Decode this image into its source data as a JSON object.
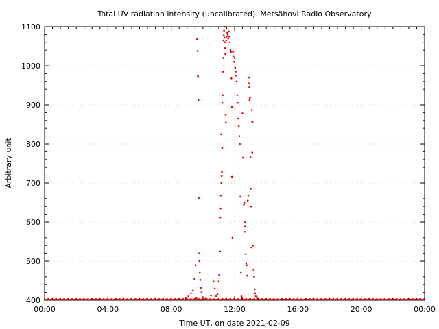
{
  "chart_data": {
    "type": "scatter",
    "title": "Total UV radiation intensity (uncalibrated). Metsähovi Radio Observatory",
    "xlabel": "Time UT, on date 2021-02-09",
    "ylabel": "Arbitrary unit",
    "xlim": [
      "00:00",
      "24:00"
    ],
    "ylim": [
      400,
      1100
    ],
    "xticks": [
      "00:00",
      "04:00",
      "08:00",
      "12:00",
      "16:00",
      "20:00",
      "00:00"
    ],
    "yticks": [
      400,
      500,
      600,
      700,
      800,
      900,
      1000,
      1100
    ],
    "grid": true,
    "legend": "none",
    "series": [
      {
        "color": "#e00000",
        "marker": "dot",
        "baseline": {
          "x_from": "00:00",
          "x_to": "24:00",
          "value": 402,
          "note_interval_hours": 0.05
        },
        "points": [
          {
            "x": "08:55",
            "y": 405
          },
          {
            "x": "09:05",
            "y": 410
          },
          {
            "x": "09:15",
            "y": 418
          },
          {
            "x": "09:22",
            "y": 425
          },
          {
            "x": "09:28",
            "y": 455
          },
          {
            "x": "09:32",
            "y": 490
          },
          {
            "x": "09:35",
            "y": 405
          },
          {
            "x": "09:38",
            "y": 1068
          },
          {
            "x": "09:40",
            "y": 1038
          },
          {
            "x": "09:41",
            "y": 974
          },
          {
            "x": "09:42",
            "y": 971
          },
          {
            "x": "09:43",
            "y": 912
          },
          {
            "x": "09:44",
            "y": 662
          },
          {
            "x": "09:46",
            "y": 520
          },
          {
            "x": "09:47",
            "y": 500
          },
          {
            "x": "09:48",
            "y": 470
          },
          {
            "x": "09:50",
            "y": 452
          },
          {
            "x": "09:52",
            "y": 432
          },
          {
            "x": "09:55",
            "y": 420
          },
          {
            "x": "10:00",
            "y": 408
          },
          {
            "x": "10:10",
            "y": 404
          },
          {
            "x": "10:30",
            "y": 412
          },
          {
            "x": "10:40",
            "y": 448
          },
          {
            "x": "10:45",
            "y": 430
          },
          {
            "x": "10:50",
            "y": 410
          },
          {
            "x": "10:55",
            "y": 415
          },
          {
            "x": "11:00",
            "y": 448
          },
          {
            "x": "11:02",
            "y": 465
          },
          {
            "x": "11:05",
            "y": 525
          },
          {
            "x": "11:06",
            "y": 612
          },
          {
            "x": "11:07",
            "y": 635
          },
          {
            "x": "11:08",
            "y": 668
          },
          {
            "x": "11:09",
            "y": 825
          },
          {
            "x": "11:10",
            "y": 700
          },
          {
            "x": "11:11",
            "y": 718
          },
          {
            "x": "11:12",
            "y": 728
          },
          {
            "x": "11:13",
            "y": 790
          },
          {
            "x": "11:14",
            "y": 905
          },
          {
            "x": "11:15",
            "y": 925
          },
          {
            "x": "11:16",
            "y": 985
          },
          {
            "x": "11:17",
            "y": 1020
          },
          {
            "x": "11:18",
            "y": 1065
          },
          {
            "x": "11:19",
            "y": 1078
          },
          {
            "x": "11:20",
            "y": 1090
          },
          {
            "x": "11:21",
            "y": 1100
          },
          {
            "x": "11:22",
            "y": 1072
          },
          {
            "x": "11:23",
            "y": 1060
          },
          {
            "x": "11:24",
            "y": 1045
          },
          {
            "x": "11:25",
            "y": 1030
          },
          {
            "x": "11:26",
            "y": 875
          },
          {
            "x": "11:27",
            "y": 855
          },
          {
            "x": "11:28",
            "y": 1065
          },
          {
            "x": "11:30",
            "y": 1075
          },
          {
            "x": "11:32",
            "y": 1085
          },
          {
            "x": "11:34",
            "y": 1080
          },
          {
            "x": "11:36",
            "y": 1070
          },
          {
            "x": "11:38",
            "y": 1088
          },
          {
            "x": "11:40",
            "y": 1075
          },
          {
            "x": "11:42",
            "y": 1060
          },
          {
            "x": "11:44",
            "y": 1040
          },
          {
            "x": "11:46",
            "y": 1035
          },
          {
            "x": "11:48",
            "y": 968
          },
          {
            "x": "11:50",
            "y": 895
          },
          {
            "x": "11:50",
            "y": 716
          },
          {
            "x": "11:52",
            "y": 560
          },
          {
            "x": "11:54",
            "y": 1035
          },
          {
            "x": "11:56",
            "y": 1025
          },
          {
            "x": "11:58",
            "y": 1010
          },
          {
            "x": "12:00",
            "y": 1020
          },
          {
            "x": "12:02",
            "y": 995
          },
          {
            "x": "12:04",
            "y": 985
          },
          {
            "x": "12:06",
            "y": 975
          },
          {
            "x": "12:08",
            "y": 960
          },
          {
            "x": "12:10",
            "y": 925
          },
          {
            "x": "12:12",
            "y": 905
          },
          {
            "x": "12:14",
            "y": 865
          },
          {
            "x": "12:16",
            "y": 845
          },
          {
            "x": "12:18",
            "y": 820
          },
          {
            "x": "12:20",
            "y": 800
          },
          {
            "x": "12:22",
            "y": 665
          },
          {
            "x": "12:24",
            "y": 470
          },
          {
            "x": "12:26",
            "y": 410
          },
          {
            "x": "12:28",
            "y": 405
          },
          {
            "x": "12:30",
            "y": 878
          },
          {
            "x": "12:32",
            "y": 765
          },
          {
            "x": "12:35",
            "y": 645
          },
          {
            "x": "12:37",
            "y": 650
          },
          {
            "x": "12:38",
            "y": 575
          },
          {
            "x": "12:39",
            "y": 590
          },
          {
            "x": "12:40",
            "y": 600
          },
          {
            "x": "12:42",
            "y": 518
          },
          {
            "x": "12:44",
            "y": 495
          },
          {
            "x": "12:46",
            "y": 490
          },
          {
            "x": "12:48",
            "y": 463
          },
          {
            "x": "12:50",
            "y": 655
          },
          {
            "x": "12:52",
            "y": 668
          },
          {
            "x": "12:54",
            "y": 955
          },
          {
            "x": "12:55",
            "y": 970
          },
          {
            "x": "12:56",
            "y": 945
          },
          {
            "x": "12:57",
            "y": 912
          },
          {
            "x": "12:58",
            "y": 918
          },
          {
            "x": "13:00",
            "y": 766
          },
          {
            "x": "13:01",
            "y": 685
          },
          {
            "x": "13:02",
            "y": 640
          },
          {
            "x": "13:04",
            "y": 535
          },
          {
            "x": "13:05",
            "y": 887
          },
          {
            "x": "13:06",
            "y": 858
          },
          {
            "x": "13:07",
            "y": 778
          },
          {
            "x": "13:08",
            "y": 855
          },
          {
            "x": "13:10",
            "y": 540
          },
          {
            "x": "13:12",
            "y": 478
          },
          {
            "x": "13:14",
            "y": 460
          },
          {
            "x": "13:16",
            "y": 428
          },
          {
            "x": "13:18",
            "y": 418
          },
          {
            "x": "13:20",
            "y": 410
          },
          {
            "x": "13:25",
            "y": 406
          }
        ]
      }
    ]
  }
}
